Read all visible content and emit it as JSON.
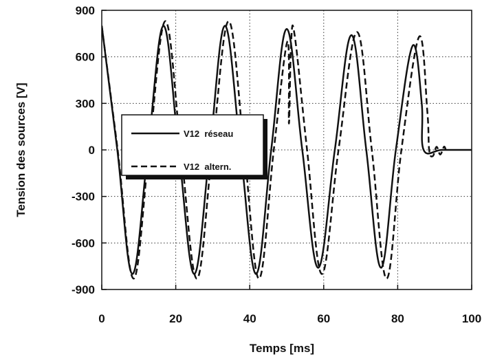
{
  "chart_data": {
    "type": "line",
    "xlabel": "Temps [ms]",
    "ylabel": "Tension des sources [V]",
    "xlim": [
      0,
      100
    ],
    "ylim": [
      -900,
      900
    ],
    "x_ticks": [
      "0",
      "20",
      "40",
      "60",
      "80",
      "100"
    ],
    "y_ticks": [
      "900",
      "600",
      "300",
      "0",
      "-300",
      "-600",
      "-900"
    ],
    "grid": true,
    "legend_position": "center-left",
    "series": [
      {
        "name": "V12  réseau",
        "style": "solid",
        "color": "#111111",
        "points": [
          [
            0,
            800
          ],
          [
            4.2,
            0
          ],
          [
            8.3,
            -800
          ],
          [
            12.5,
            0
          ],
          [
            16.7,
            800
          ],
          [
            20.8,
            0
          ],
          [
            25,
            -800
          ],
          [
            29.2,
            0
          ],
          [
            33.3,
            800
          ],
          [
            37.5,
            0
          ],
          [
            41.7,
            -800
          ],
          [
            45.8,
            0
          ],
          [
            50,
            780
          ],
          [
            54.2,
            0
          ],
          [
            58.5,
            -760
          ],
          [
            63,
            0
          ],
          [
            67.5,
            740
          ],
          [
            71.5,
            0
          ],
          [
            75.5,
            -760
          ],
          [
            79.5,
            0
          ],
          [
            84,
            670
          ],
          [
            86.5,
            300
          ],
          [
            87,
            0
          ],
          [
            92,
            0
          ],
          [
            100,
            0
          ]
        ]
      },
      {
        "name": "V12  altern.",
        "style": "dashed",
        "color": "#111111",
        "points": [
          [
            0,
            800
          ],
          [
            4.3,
            0
          ],
          [
            8.6,
            -830
          ],
          [
            12.8,
            0
          ],
          [
            17.2,
            830
          ],
          [
            21.4,
            0
          ],
          [
            25.7,
            -830
          ],
          [
            29.9,
            0
          ],
          [
            34.3,
            830
          ],
          [
            38.5,
            0
          ],
          [
            42.5,
            -830
          ],
          [
            46.5,
            0
          ],
          [
            50.2,
            700
          ],
          [
            50.6,
            170
          ],
          [
            51.2,
            700
          ],
          [
            52.2,
            730
          ],
          [
            55.5,
            0
          ],
          [
            59.5,
            -800
          ],
          [
            64,
            0
          ],
          [
            69,
            760
          ],
          [
            73,
            0
          ],
          [
            77,
            -830
          ],
          [
            81,
            0
          ],
          [
            85.8,
            730
          ],
          [
            88,
            250
          ],
          [
            88.5,
            0
          ],
          [
            89.5,
            -40
          ],
          [
            90.5,
            20
          ],
          [
            91.5,
            -30
          ],
          [
            92.5,
            20
          ],
          [
            93,
            0
          ]
        ]
      }
    ]
  }
}
